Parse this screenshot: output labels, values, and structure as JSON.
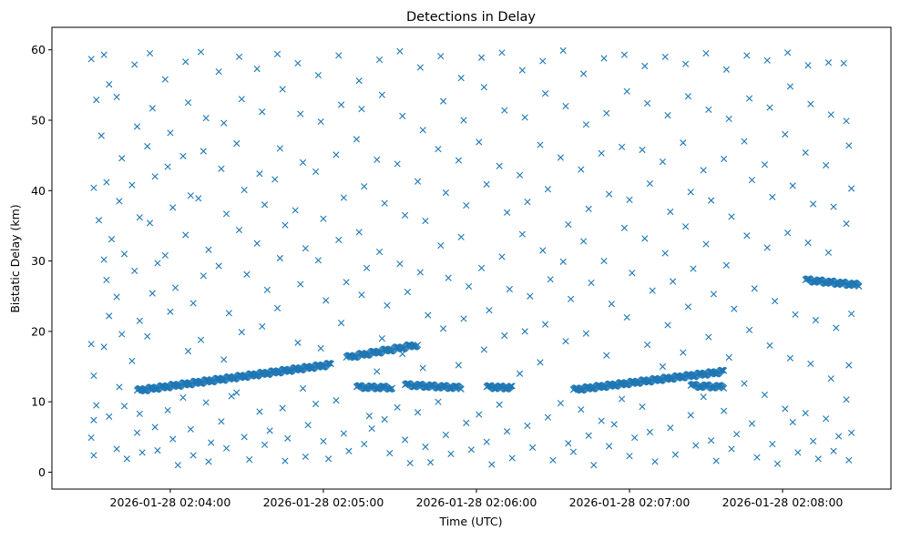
{
  "chart_data": {
    "type": "scatter",
    "title": "Detections in Delay",
    "xlabel": "Time (UTC)",
    "ylabel": "Bistatic Delay (km)",
    "x_units": "seconds after 2026-01-28 02:03:00 UTC",
    "xlim": [
      13.6,
      342.5
    ],
    "ylim": [
      -2.4,
      63.2
    ],
    "x_ticks": [
      {
        "value": 60,
        "label": "2026-01-28 02:04:00"
      },
      {
        "value": 120,
        "label": "2026-01-28 02:05:00"
      },
      {
        "value": 180,
        "label": "2026-01-28 02:06:00"
      },
      {
        "value": 240,
        "label": "2026-01-28 02:07:00"
      },
      {
        "value": 300,
        "label": "2026-01-28 02:08:00"
      }
    ],
    "y_ticks": [
      {
        "value": 0,
        "label": "0"
      },
      {
        "value": 10,
        "label": "10"
      },
      {
        "value": 20,
        "label": "20"
      },
      {
        "value": 30,
        "label": "30"
      },
      {
        "value": 40,
        "label": "40"
      },
      {
        "value": 50,
        "label": "50"
      },
      {
        "value": 60,
        "label": "60"
      }
    ],
    "marker": "x",
    "color": "#1f77b4",
    "grid": false,
    "tracks": [
      {
        "name": "track-a1",
        "x_start": 47,
        "y_start": 11.6,
        "x_end": 123,
        "y_end": 15.3,
        "count": 260
      },
      {
        "name": "track-a2",
        "x_start": 129,
        "y_start": 16.3,
        "x_end": 157,
        "y_end": 18.1,
        "count": 90
      },
      {
        "name": "track-b",
        "x_start": 133,
        "y_start": 12.1,
        "x_end": 147,
        "y_end": 12.0,
        "count": 45
      },
      {
        "name": "track-c",
        "x_start": 152,
        "y_start": 12.4,
        "x_end": 174,
        "y_end": 12.0,
        "count": 70
      },
      {
        "name": "track-d",
        "x_start": 184,
        "y_start": 12.1,
        "x_end": 194,
        "y_end": 12.0,
        "count": 35
      },
      {
        "name": "track-e",
        "x_start": 218,
        "y_start": 11.7,
        "x_end": 277,
        "y_end": 14.3,
        "count": 200
      },
      {
        "name": "track-f",
        "x_start": 264,
        "y_start": 12.3,
        "x_end": 277,
        "y_end": 12.1,
        "count": 40
      },
      {
        "name": "track-g",
        "x_start": 309,
        "y_start": 27.3,
        "x_end": 330,
        "y_end": 26.6,
        "count": 70
      }
    ],
    "noise_points": [
      [
        29,
        58.7
      ],
      [
        31,
        52.9
      ],
      [
        30,
        40.4
      ],
      [
        32,
        35.8
      ],
      [
        29,
        18.2
      ],
      [
        30,
        13.7
      ],
      [
        31,
        9.5
      ],
      [
        30,
        7.4
      ],
      [
        29,
        4.9
      ],
      [
        30,
        2.4
      ],
      [
        34,
        59.3
      ],
      [
        36,
        55.1
      ],
      [
        33,
        47.8
      ],
      [
        35,
        41.2
      ],
      [
        37,
        33.1
      ],
      [
        34,
        30.2
      ],
      [
        35,
        27.3
      ],
      [
        36,
        22.2
      ],
      [
        34,
        17.8
      ],
      [
        36,
        7.9
      ],
      [
        39,
        53.3
      ],
      [
        41,
        44.6
      ],
      [
        40,
        38.5
      ],
      [
        42,
        31.0
      ],
      [
        39,
        24.9
      ],
      [
        41,
        19.6
      ],
      [
        40,
        12.1
      ],
      [
        42,
        9.4
      ],
      [
        39,
        3.3
      ],
      [
        43,
        1.9
      ],
      [
        46,
        57.9
      ],
      [
        47,
        49.1
      ],
      [
        45,
        40.8
      ],
      [
        48,
        36.2
      ],
      [
        46,
        28.6
      ],
      [
        48,
        21.5
      ],
      [
        45,
        15.8
      ],
      [
        47,
        5.6
      ],
      [
        49,
        2.8
      ],
      [
        48,
        8.3
      ],
      [
        52,
        59.5
      ],
      [
        53,
        51.7
      ],
      [
        51,
        46.3
      ],
      [
        54,
        42.0
      ],
      [
        52,
        35.4
      ],
      [
        55,
        29.7
      ],
      [
        53,
        25.4
      ],
      [
        51,
        19.3
      ],
      [
        54,
        6.4
      ],
      [
        55,
        3.1
      ],
      [
        58,
        55.8
      ],
      [
        60,
        48.2
      ],
      [
        59,
        43.4
      ],
      [
        61,
        37.6
      ],
      [
        58,
        30.8
      ],
      [
        62,
        26.2
      ],
      [
        60,
        22.8
      ],
      [
        59,
        8.8
      ],
      [
        61,
        4.7
      ],
      [
        63,
        1.0
      ],
      [
        66,
        58.3
      ],
      [
        67,
        52.5
      ],
      [
        65,
        44.9
      ],
      [
        68,
        39.3
      ],
      [
        66,
        33.7
      ],
      [
        69,
        24.0
      ],
      [
        67,
        17.2
      ],
      [
        65,
        10.6
      ],
      [
        68,
        6.1
      ],
      [
        69,
        2.4
      ],
      [
        72,
        59.7
      ],
      [
        74,
        50.3
      ],
      [
        73,
        45.6
      ],
      [
        71,
        38.9
      ],
      [
        75,
        31.6
      ],
      [
        73,
        27.9
      ],
      [
        72,
        18.8
      ],
      [
        74,
        9.9
      ],
      [
        76,
        4.2
      ],
      [
        75,
        1.5
      ],
      [
        79,
        56.9
      ],
      [
        81,
        49.6
      ],
      [
        80,
        43.1
      ],
      [
        82,
        36.7
      ],
      [
        79,
        29.3
      ],
      [
        83,
        22.6
      ],
      [
        81,
        16.0
      ],
      [
        80,
        7.2
      ],
      [
        82,
        3.4
      ],
      [
        84,
        10.8
      ],
      [
        87,
        59.0
      ],
      [
        88,
        53.0
      ],
      [
        86,
        46.7
      ],
      [
        89,
        40.1
      ],
      [
        87,
        34.4
      ],
      [
        90,
        28.1
      ],
      [
        88,
        19.9
      ],
      [
        86,
        11.3
      ],
      [
        89,
        5.0
      ],
      [
        91,
        1.8
      ],
      [
        94,
        57.3
      ],
      [
        96,
        51.2
      ],
      [
        95,
        42.4
      ],
      [
        97,
        38.0
      ],
      [
        94,
        32.5
      ],
      [
        98,
        25.9
      ],
      [
        96,
        20.7
      ],
      [
        95,
        8.6
      ],
      [
        97,
        3.9
      ],
      [
        99,
        5.9
      ],
      [
        102,
        59.4
      ],
      [
        104,
        54.4
      ],
      [
        103,
        46.0
      ],
      [
        101,
        41.6
      ],
      [
        105,
        35.1
      ],
      [
        103,
        30.4
      ],
      [
        102,
        23.3
      ],
      [
        104,
        9.1
      ],
      [
        106,
        4.8
      ],
      [
        105,
        1.6
      ],
      [
        110,
        58.1
      ],
      [
        111,
        50.9
      ],
      [
        112,
        44.0
      ],
      [
        109,
        37.2
      ],
      [
        113,
        31.8
      ],
      [
        111,
        26.7
      ],
      [
        110,
        18.4
      ],
      [
        112,
        11.9
      ],
      [
        114,
        6.7
      ],
      [
        113,
        2.2
      ],
      [
        118,
        56.4
      ],
      [
        119,
        49.8
      ],
      [
        117,
        42.7
      ],
      [
        120,
        36.0
      ],
      [
        118,
        30.1
      ],
      [
        121,
        24.4
      ],
      [
        119,
        17.6
      ],
      [
        117,
        9.7
      ],
      [
        120,
        4.4
      ],
      [
        122,
        1.9
      ],
      [
        126,
        59.2
      ],
      [
        127,
        52.2
      ],
      [
        125,
        45.1
      ],
      [
        128,
        39.0
      ],
      [
        126,
        33.0
      ],
      [
        129,
        27.0
      ],
      [
        127,
        21.2
      ],
      [
        125,
        10.2
      ],
      [
        128,
        5.5
      ],
      [
        130,
        3.0
      ],
      [
        134,
        55.6
      ],
      [
        135,
        51.6
      ],
      [
        133,
        47.3
      ],
      [
        136,
        40.6
      ],
      [
        134,
        34.1
      ],
      [
        137,
        29.0
      ],
      [
        135,
        25.2
      ],
      [
        138,
        8.0
      ],
      [
        136,
        4.0
      ],
      [
        139,
        6.2
      ],
      [
        142,
        58.6
      ],
      [
        143,
        53.6
      ],
      [
        141,
        44.4
      ],
      [
        144,
        38.2
      ],
      [
        142,
        31.3
      ],
      [
        145,
        23.7
      ],
      [
        143,
        19.0
      ],
      [
        141,
        14.3
      ],
      [
        144,
        7.5
      ],
      [
        146,
        2.7
      ],
      [
        150,
        59.8
      ],
      [
        151,
        50.6
      ],
      [
        149,
        43.8
      ],
      [
        152,
        36.5
      ],
      [
        150,
        29.6
      ],
      [
        153,
        25.6
      ],
      [
        151,
        16.8
      ],
      [
        149,
        9.2
      ],
      [
        152,
        4.6
      ],
      [
        154,
        1.3
      ],
      [
        158,
        57.5
      ],
      [
        159,
        48.6
      ],
      [
        157,
        41.3
      ],
      [
        160,
        35.7
      ],
      [
        158,
        28.4
      ],
      [
        161,
        22.3
      ],
      [
        159,
        14.8
      ],
      [
        157,
        8.5
      ],
      [
        160,
        3.6
      ],
      [
        162,
        1.4
      ],
      [
        166,
        59.1
      ],
      [
        167,
        52.7
      ],
      [
        165,
        45.9
      ],
      [
        168,
        39.7
      ],
      [
        166,
        32.2
      ],
      [
        169,
        27.6
      ],
      [
        167,
        20.4
      ],
      [
        165,
        10.0
      ],
      [
        168,
        5.3
      ],
      [
        170,
        2.6
      ],
      [
        174,
        56.0
      ],
      [
        175,
        50.0
      ],
      [
        173,
        44.3
      ],
      [
        176,
        37.9
      ],
      [
        174,
        33.4
      ],
      [
        177,
        26.4
      ],
      [
        175,
        21.8
      ],
      [
        173,
        15.2
      ],
      [
        176,
        7.0
      ],
      [
        178,
        3.2
      ],
      [
        182,
        58.9
      ],
      [
        183,
        54.7
      ],
      [
        181,
        46.9
      ],
      [
        184,
        40.9
      ],
      [
        182,
        29.0
      ],
      [
        185,
        23.0
      ],
      [
        183,
        17.4
      ],
      [
        181,
        8.2
      ],
      [
        184,
        4.3
      ],
      [
        186,
        1.1
      ],
      [
        190,
        59.6
      ],
      [
        191,
        51.4
      ],
      [
        189,
        43.5
      ],
      [
        192,
        36.9
      ],
      [
        190,
        30.6
      ],
      [
        193,
        26.0
      ],
      [
        191,
        19.4
      ],
      [
        189,
        9.6
      ],
      [
        192,
        5.8
      ],
      [
        194,
        2.0
      ],
      [
        198,
        57.1
      ],
      [
        199,
        50.4
      ],
      [
        197,
        42.2
      ],
      [
        200,
        38.4
      ],
      [
        198,
        33.8
      ],
      [
        201,
        25.0
      ],
      [
        199,
        20.0
      ],
      [
        197,
        14.0
      ],
      [
        200,
        6.6
      ],
      [
        202,
        3.5
      ],
      [
        206,
        58.4
      ],
      [
        207,
        53.8
      ],
      [
        205,
        46.5
      ],
      [
        208,
        40.2
      ],
      [
        206,
        31.5
      ],
      [
        209,
        27.4
      ],
      [
        207,
        21.0
      ],
      [
        205,
        15.6
      ],
      [
        208,
        7.8
      ],
      [
        210,
        1.7
      ],
      [
        214,
        59.9
      ],
      [
        215,
        52.0
      ],
      [
        213,
        44.7
      ],
      [
        216,
        35.2
      ],
      [
        214,
        29.9
      ],
      [
        217,
        24.6
      ],
      [
        215,
        18.6
      ],
      [
        213,
        9.8
      ],
      [
        216,
        4.1
      ],
      [
        218,
        2.9
      ],
      [
        222,
        56.6
      ],
      [
        223,
        49.4
      ],
      [
        221,
        43.0
      ],
      [
        224,
        37.4
      ],
      [
        222,
        32.8
      ],
      [
        225,
        26.9
      ],
      [
        223,
        19.7
      ],
      [
        221,
        8.9
      ],
      [
        224,
        5.2
      ],
      [
        226,
        1.0
      ],
      [
        230,
        58.8
      ],
      [
        231,
        51.0
      ],
      [
        229,
        45.3
      ],
      [
        232,
        39.5
      ],
      [
        230,
        30.0
      ],
      [
        233,
        23.9
      ],
      [
        231,
        16.6
      ],
      [
        229,
        7.3
      ],
      [
        232,
        3.7
      ],
      [
        234,
        6.8
      ],
      [
        238,
        59.3
      ],
      [
        239,
        54.1
      ],
      [
        237,
        46.2
      ],
      [
        240,
        38.7
      ],
      [
        238,
        34.7
      ],
      [
        241,
        28.3
      ],
      [
        239,
        22.0
      ],
      [
        237,
        10.4
      ],
      [
        240,
        2.3
      ],
      [
        242,
        4.9
      ],
      [
        246,
        57.7
      ],
      [
        247,
        52.4
      ],
      [
        245,
        45.8
      ],
      [
        248,
        41.0
      ],
      [
        246,
        33.2
      ],
      [
        249,
        25.8
      ],
      [
        247,
        18.1
      ],
      [
        245,
        9.3
      ],
      [
        248,
        5.7
      ],
      [
        250,
        1.5
      ],
      [
        254,
        59.0
      ],
      [
        255,
        50.7
      ],
      [
        253,
        44.1
      ],
      [
        256,
        37.0
      ],
      [
        254,
        31.1
      ],
      [
        257,
        27.1
      ],
      [
        255,
        20.9
      ],
      [
        253,
        15.0
      ],
      [
        256,
        6.3
      ],
      [
        258,
        2.5
      ],
      [
        262,
        58.0
      ],
      [
        263,
        53.4
      ],
      [
        261,
        46.8
      ],
      [
        264,
        39.8
      ],
      [
        262,
        34.9
      ],
      [
        265,
        28.9
      ],
      [
        263,
        23.5
      ],
      [
        261,
        17.0
      ],
      [
        264,
        8.1
      ],
      [
        266,
        3.8
      ],
      [
        270,
        59.5
      ],
      [
        271,
        51.5
      ],
      [
        269,
        42.9
      ],
      [
        272,
        38.6
      ],
      [
        270,
        32.4
      ],
      [
        273,
        25.3
      ],
      [
        271,
        19.2
      ],
      [
        269,
        10.7
      ],
      [
        272,
        4.5
      ],
      [
        274,
        1.6
      ],
      [
        278,
        57.2
      ],
      [
        279,
        50.2
      ],
      [
        277,
        44.5
      ],
      [
        280,
        36.3
      ],
      [
        278,
        29.4
      ],
      [
        281,
        23.2
      ],
      [
        279,
        16.3
      ],
      [
        277,
        8.7
      ],
      [
        280,
        3.3
      ],
      [
        282,
        5.4
      ],
      [
        286,
        59.2
      ],
      [
        287,
        53.1
      ],
      [
        285,
        47.0
      ],
      [
        288,
        41.5
      ],
      [
        286,
        33.6
      ],
      [
        289,
        26.1
      ],
      [
        287,
        20.2
      ],
      [
        285,
        12.6
      ],
      [
        288,
        6.9
      ],
      [
        290,
        2.1
      ],
      [
        294,
        58.5
      ],
      [
        295,
        51.8
      ],
      [
        293,
        43.7
      ],
      [
        296,
        39.1
      ],
      [
        294,
        31.9
      ],
      [
        297,
        24.3
      ],
      [
        295,
        18.0
      ],
      [
        293,
        11.0
      ],
      [
        296,
        4.0
      ],
      [
        298,
        1.2
      ],
      [
        302,
        59.6
      ],
      [
        303,
        54.8
      ],
      [
        301,
        48.0
      ],
      [
        304,
        40.7
      ],
      [
        302,
        34.0
      ],
      [
        305,
        22.4
      ],
      [
        303,
        16.2
      ],
      [
        301,
        9.0
      ],
      [
        304,
        7.1
      ],
      [
        306,
        2.8
      ],
      [
        310,
        57.8
      ],
      [
        311,
        52.3
      ],
      [
        309,
        45.4
      ],
      [
        312,
        38.1
      ],
      [
        310,
        32.6
      ],
      [
        313,
        21.6
      ],
      [
        311,
        15.4
      ],
      [
        309,
        8.4
      ],
      [
        312,
        4.4
      ],
      [
        314,
        1.9
      ],
      [
        318,
        58.2
      ],
      [
        319,
        50.8
      ],
      [
        317,
        43.6
      ],
      [
        320,
        37.7
      ],
      [
        318,
        31.2
      ],
      [
        321,
        20.5
      ],
      [
        319,
        13.3
      ],
      [
        317,
        7.6
      ],
      [
        320,
        3.0
      ],
      [
        322,
        5.1
      ],
      [
        324,
        58.1
      ],
      [
        325,
        49.9
      ],
      [
        326,
        46.4
      ],
      [
        327,
        40.3
      ],
      [
        325,
        35.3
      ],
      [
        327,
        22.5
      ],
      [
        326,
        15.2
      ],
      [
        325,
        10.3
      ],
      [
        327,
        5.6
      ],
      [
        326,
        1.7
      ]
    ]
  }
}
